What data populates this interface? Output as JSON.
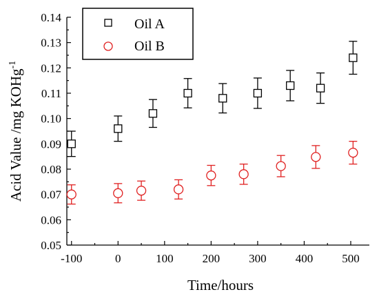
{
  "chart_data": {
    "type": "scatter",
    "xlabel": "Time/hours",
    "ylabel": "Acid Value /mg KOHg",
    "ylabel_superscript": "-1",
    "xlim": [
      -110,
      540
    ],
    "ylim": [
      0.05,
      0.14
    ],
    "xticks": [
      -100,
      0,
      100,
      200,
      300,
      400,
      500
    ],
    "yticks": [
      0.05,
      0.06,
      0.07,
      0.08,
      0.09,
      0.1,
      0.11,
      0.12,
      0.13,
      0.14
    ],
    "xtick_labels": [
      "-100",
      "0",
      "100",
      "200",
      "300",
      "400",
      "500"
    ],
    "ytick_labels": [
      "0.05",
      "0.06",
      "0.07",
      "0.08",
      "0.09",
      "0.10",
      "0.11",
      "0.12",
      "0.13",
      "0.14"
    ],
    "grid": false,
    "legend_position": "top-left",
    "series": [
      {
        "name": "Oil A",
        "marker": "square",
        "color": "#000000",
        "points": [
          {
            "x": -100,
            "y": 0.09,
            "err": 0.005
          },
          {
            "x": 0,
            "y": 0.096,
            "err": 0.005
          },
          {
            "x": 75,
            "y": 0.102,
            "err": 0.0055
          },
          {
            "x": 150,
            "y": 0.11,
            "err": 0.0058
          },
          {
            "x": 225,
            "y": 0.108,
            "err": 0.0058
          },
          {
            "x": 300,
            "y": 0.11,
            "err": 0.006
          },
          {
            "x": 370,
            "y": 0.113,
            "err": 0.006
          },
          {
            "x": 435,
            "y": 0.112,
            "err": 0.006
          },
          {
            "x": 505,
            "y": 0.124,
            "err": 0.0065
          }
        ]
      },
      {
        "name": "Oil B",
        "marker": "circle",
        "color": "#e02020",
        "points": [
          {
            "x": -100,
            "y": 0.07,
            "err": 0.0038
          },
          {
            "x": 0,
            "y": 0.0705,
            "err": 0.0038
          },
          {
            "x": 50,
            "y": 0.0715,
            "err": 0.0038
          },
          {
            "x": 130,
            "y": 0.072,
            "err": 0.0038
          },
          {
            "x": 200,
            "y": 0.0775,
            "err": 0.004
          },
          {
            "x": 270,
            "y": 0.078,
            "err": 0.004
          },
          {
            "x": 350,
            "y": 0.0812,
            "err": 0.0042
          },
          {
            "x": 425,
            "y": 0.0848,
            "err": 0.0045
          },
          {
            "x": 505,
            "y": 0.0865,
            "err": 0.0045
          }
        ]
      }
    ]
  }
}
